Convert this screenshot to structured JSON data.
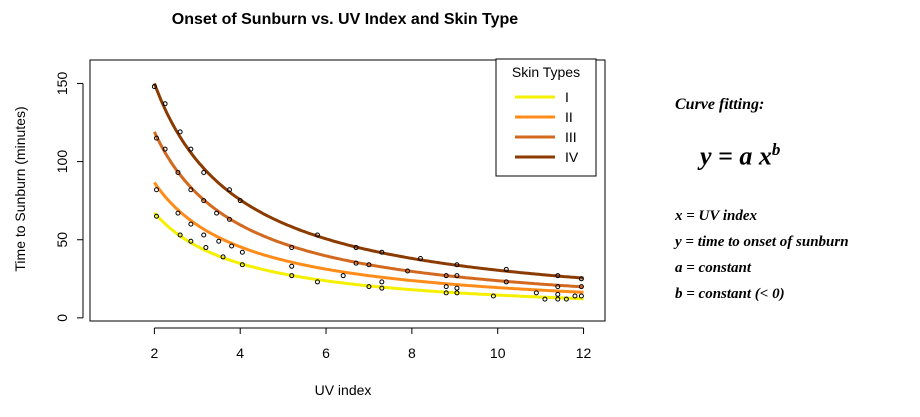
{
  "chart_data": {
    "type": "scatter",
    "title": "Onset of Sunburn vs. UV Index and Skin Type",
    "xlabel": "UV index",
    "ylabel": "Time to Sunburn (minutes)",
    "xlim": [
      0.5,
      12.5
    ],
    "ylim": [
      -2,
      165
    ],
    "xticks": [
      2,
      4,
      6,
      8,
      10,
      12
    ],
    "yticks": [
      0,
      50,
      100,
      150
    ],
    "grid": false,
    "legend": {
      "title": "Skin Types",
      "placement": "top-right"
    },
    "series": [
      {
        "name": "I",
        "color": "#f5ef00",
        "a": 130,
        "b": -0.95,
        "x": [
          2.05,
          2.6,
          2.85,
          3.2,
          3.6,
          4.05,
          5.2,
          5.8,
          7.0,
          7.3,
          8.8,
          9.05,
          9.9,
          11.1,
          11.4,
          11.6
        ],
        "y": [
          65,
          53,
          49,
          45,
          39,
          34,
          27,
          23,
          20,
          19,
          16,
          16,
          14,
          12,
          12,
          12
        ]
      },
      {
        "name": "II",
        "color": "#ff8c1a",
        "a": 165,
        "b": -0.93,
        "x": [
          2.05,
          2.55,
          2.85,
          3.15,
          3.5,
          3.8,
          4.05,
          5.2,
          6.4,
          7.3,
          8.8,
          9.05,
          10.9,
          11.4,
          11.8,
          11.95
        ],
        "y": [
          82,
          67,
          60,
          53,
          49,
          46,
          42,
          33,
          27,
          23,
          20,
          19,
          16,
          15,
          14,
          14
        ]
      },
      {
        "name": "III",
        "color": "#d2691e",
        "a": 238,
        "b": -1.0,
        "x": [
          2.05,
          2.25,
          2.55,
          2.85,
          3.15,
          3.45,
          3.75,
          5.2,
          6.7,
          7.0,
          7.9,
          8.8,
          9.05,
          10.2,
          11.4,
          11.95
        ],
        "y": [
          115,
          108,
          93,
          82,
          75,
          67,
          63,
          45,
          35,
          34,
          30,
          27,
          27,
          23,
          20,
          20
        ]
      },
      {
        "name": "IV",
        "color": "#8b3a00",
        "a": 298,
        "b": -0.99,
        "x": [
          2.0,
          2.25,
          2.6,
          2.85,
          3.15,
          3.75,
          4.0,
          5.8,
          6.7,
          7.3,
          8.2,
          9.05,
          10.2,
          11.4,
          11.95
        ],
        "y": [
          148,
          137,
          119,
          108,
          93,
          82,
          75,
          53,
          45,
          42,
          38,
          34,
          31,
          27,
          25
        ]
      }
    ]
  },
  "notes": {
    "heading": "Curve fitting:",
    "formula_base": "y = a x",
    "formula_exp": "b",
    "defs": [
      "x = UV index",
      "y = time to onset of sunburn",
      "a = constant",
      "b = constant (< 0)"
    ]
  }
}
